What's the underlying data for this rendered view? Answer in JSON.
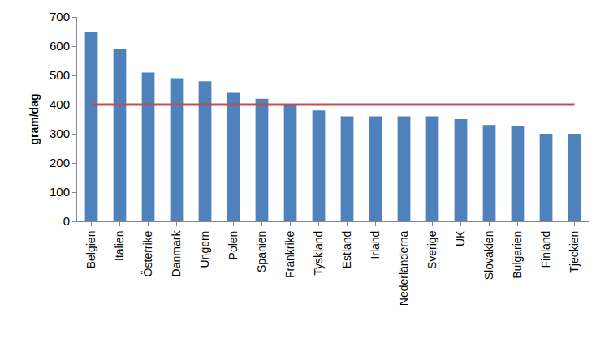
{
  "chart_data": {
    "type": "bar",
    "y_label": "gram/dag",
    "categories": [
      "Belgien",
      "Italien",
      "Österrike",
      "Danmark",
      "Ungern",
      "Polen",
      "Spanien",
      "Frankrike",
      "Tyskland",
      "Estland",
      "Irland",
      "Nederländerna",
      "Sverige",
      "UK",
      "Slovakien",
      "Bulgarien",
      "Finland",
      "Tjeckien"
    ],
    "series": [
      {
        "type": "bar",
        "color": "#4f81bd",
        "values": [
          650,
          590,
          510,
          490,
          480,
          440,
          420,
          400,
          380,
          360,
          360,
          360,
          360,
          350,
          330,
          325,
          300,
          300
        ]
      },
      {
        "type": "line",
        "color": "#c0504d",
        "values": [
          400,
          400,
          400,
          400,
          400,
          400,
          400,
          400,
          400,
          400,
          400,
          400,
          400,
          400,
          400,
          400,
          400,
          400
        ]
      }
    ],
    "ylim": [
      0,
      700
    ],
    "yticks": [
      0,
      100,
      200,
      300,
      400,
      500,
      600,
      700
    ],
    "grid": false
  }
}
